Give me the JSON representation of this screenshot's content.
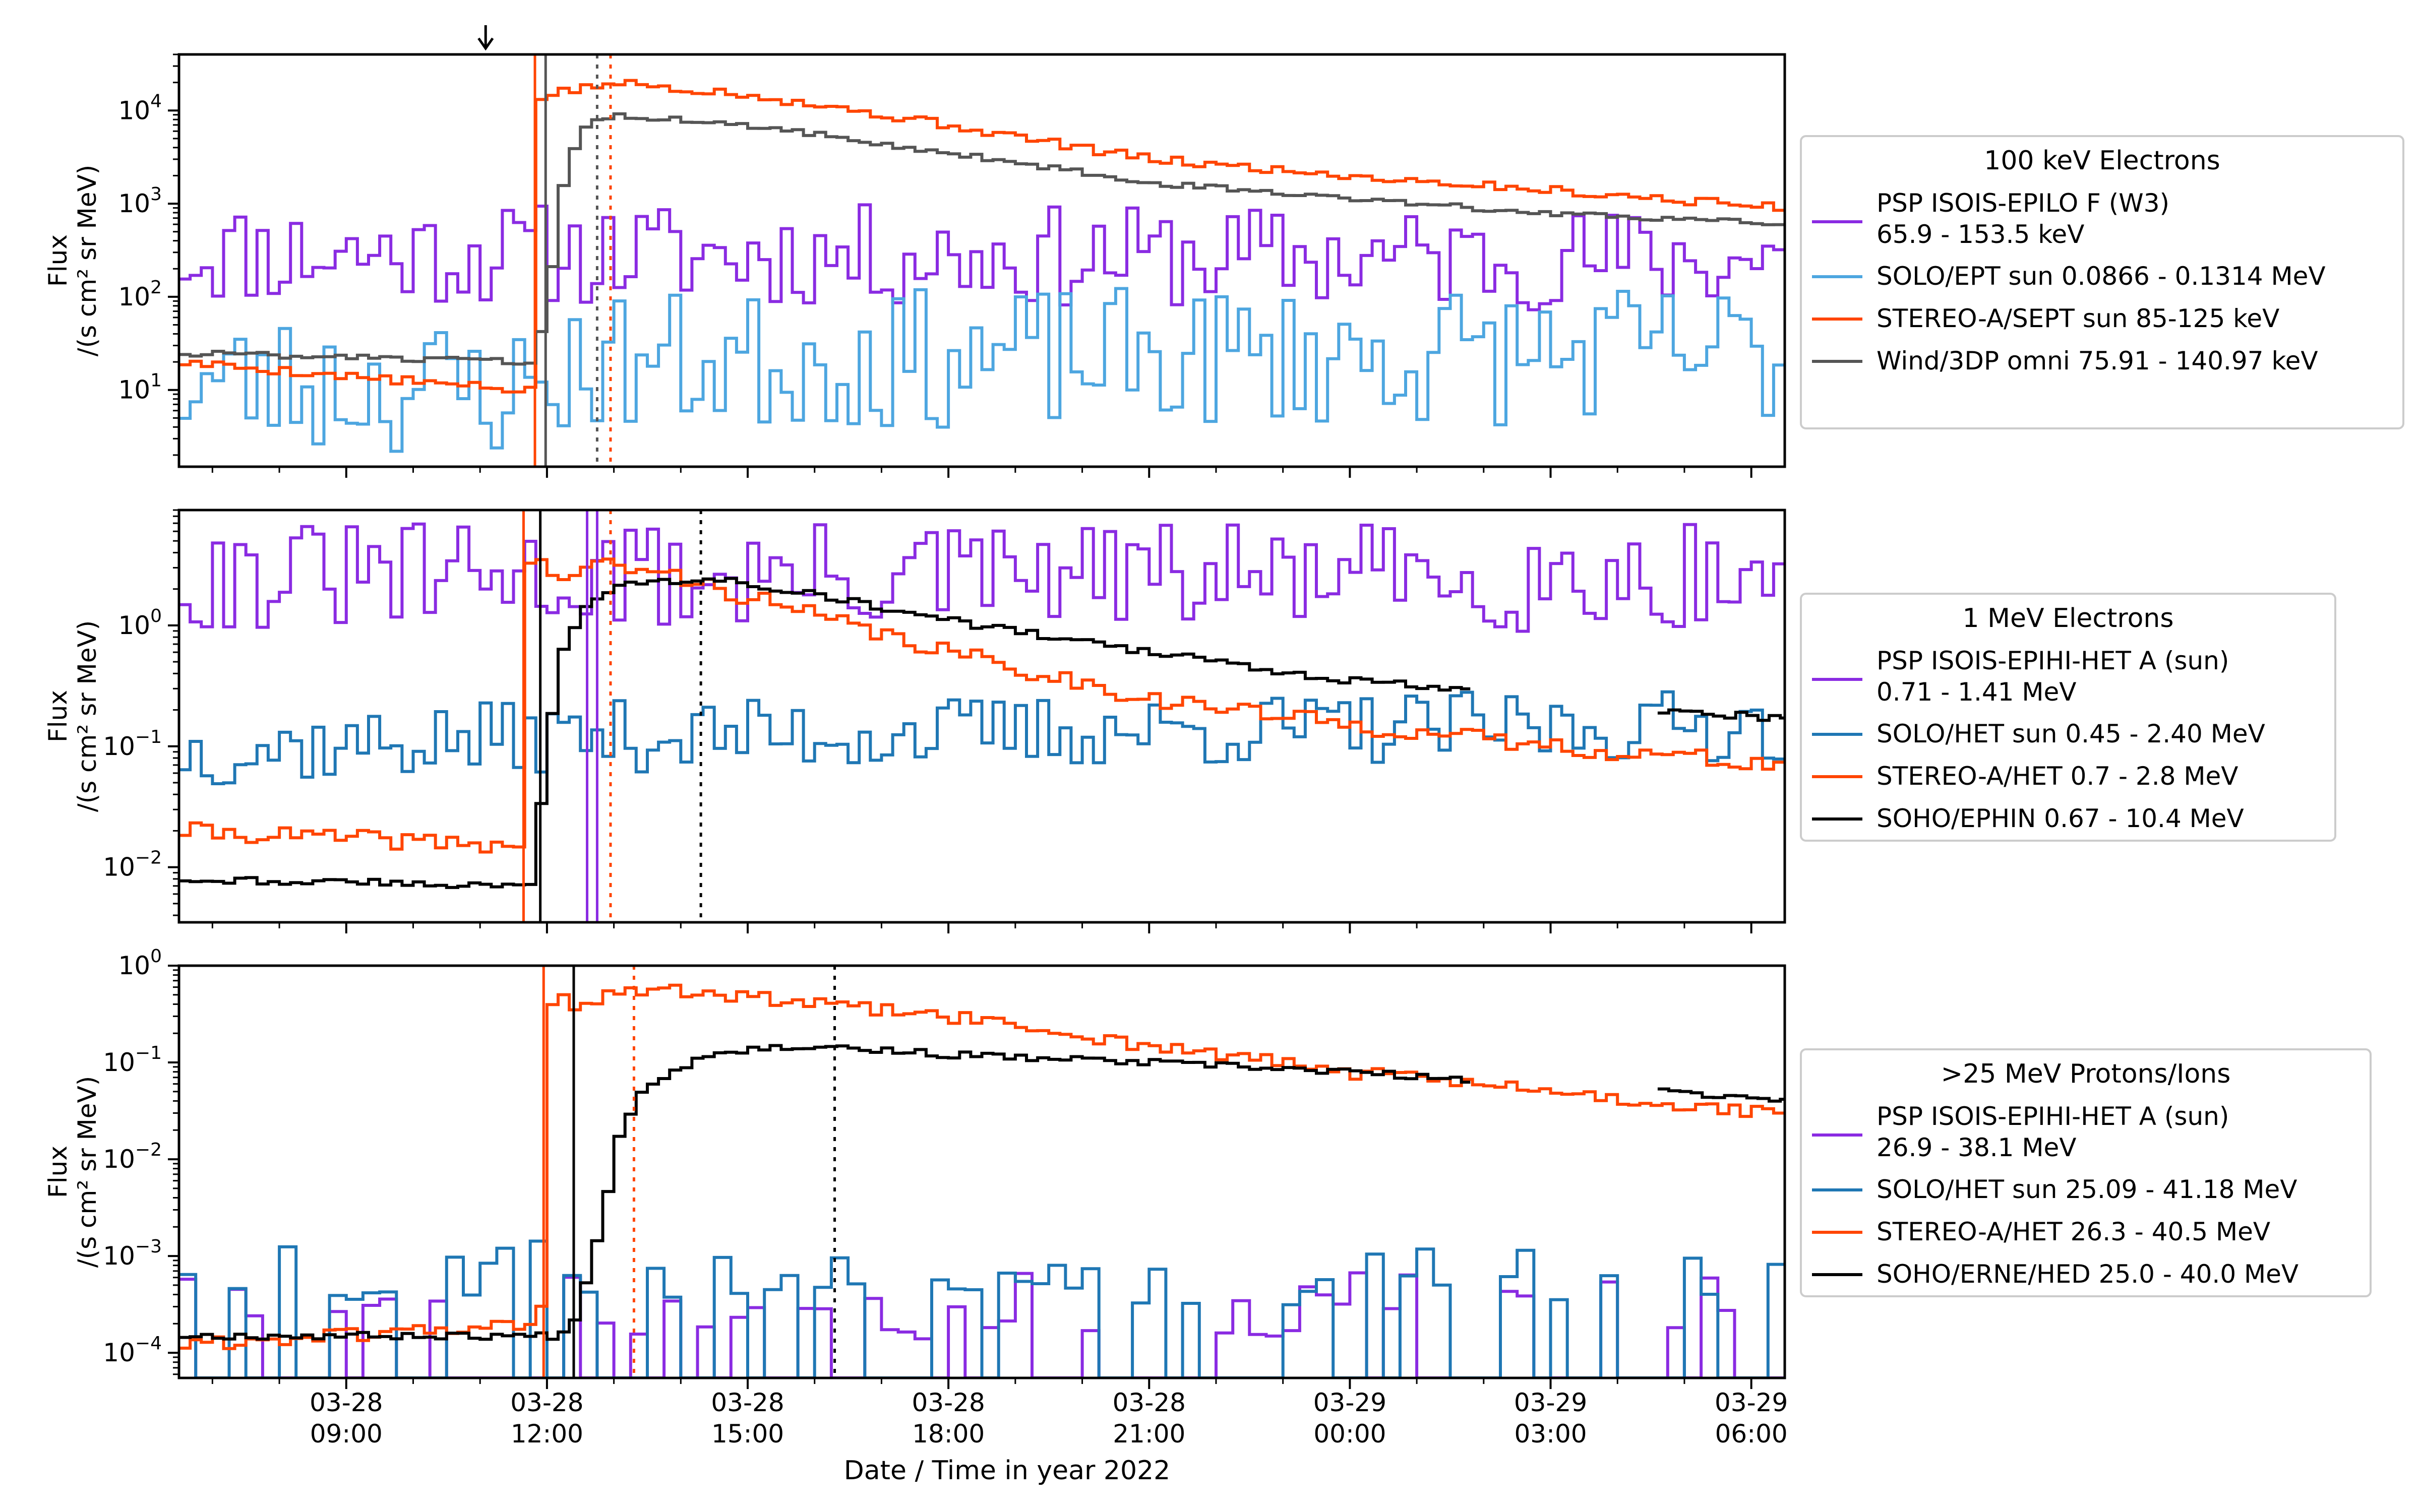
{
  "chart_data": {
    "type": "line",
    "xlabel": "Date / Time in year 2022",
    "x_range": [
      "2022-03-28 06:30",
      "2022-03-29 06:30"
    ],
    "x_ticks": [
      {
        "date": "03-28",
        "time": "09:00",
        "t": 9
      },
      {
        "date": "03-28",
        "time": "12:00",
        "t": 12
      },
      {
        "date": "03-28",
        "time": "15:00",
        "t": 15
      },
      {
        "date": "03-28",
        "time": "18:00",
        "t": 18
      },
      {
        "date": "03-28",
        "time": "21:00",
        "t": 21
      },
      {
        "date": "03-29",
        "time": "00:00",
        "t": 24
      },
      {
        "date": "03-29",
        "time": "03:00",
        "t": 27
      },
      {
        "date": "03-29",
        "time": "06:00",
        "t": 30
      }
    ],
    "arrow_marker_time": "2022-03-28 11:05",
    "colors": {
      "purple": "#8a2be2",
      "lightblue": "#4da6e0",
      "orange": "#ff4500",
      "gray": "#555555",
      "blue": "#1f77b4",
      "black": "#000000"
    },
    "panels": [
      {
        "legend_title": "100 keV Electrons",
        "ylabel": "Flux\n/(s cm² sr MeV)",
        "y_scale": "log",
        "ylim": [
          1.5,
          40000
        ],
        "y_ticks": [
          {
            "v": 10,
            "m": "10",
            "e": "1"
          },
          {
            "v": 100,
            "m": "10",
            "e": "2"
          },
          {
            "v": 1000,
            "m": "10",
            "e": "3"
          },
          {
            "v": 10000,
            "m": "10",
            "e": "4"
          }
        ],
        "series": [
          {
            "name": "PSP ISOIS-EPILO F (W3)",
            "name2": "65.9 - 153.5 keV",
            "color": "#8a2be2",
            "kind": "noise",
            "seed": 11,
            "knots": [
              [
                6.5,
                300
              ],
              [
                30.5,
                250
              ]
            ],
            "amp": 0.55
          },
          {
            "name": "SOLO/EPT sun 0.0866 - 0.1314 MeV",
            "color": "#4da6e0",
            "kind": "noise",
            "seed": 23,
            "knots": [
              [
                6.5,
                12
              ],
              [
                11.8,
                10
              ],
              [
                12.6,
                20
              ],
              [
                30.5,
                25
              ]
            ],
            "amp": 0.75
          },
          {
            "name": "STEREO-A/SEPT sun 85-125 keV",
            "color": "#ff4500",
            "kind": "smooth",
            "seed": 5,
            "knots": [
              [
                6.5,
                20
              ],
              [
                11.5,
                10
              ],
              [
                11.85,
                10
              ],
              [
                11.9,
                14000
              ],
              [
                12.7,
                18000
              ],
              [
                13.0,
                20000
              ],
              [
                15.0,
                15000
              ],
              [
                18.0,
                7000
              ],
              [
                21.0,
                3000
              ],
              [
                24.0,
                2000
              ],
              [
                27.0,
                1400
              ],
              [
                30.5,
                900
              ]
            ],
            "amp": 0.08
          },
          {
            "name": "Wind/3DP omni 75.91 - 140.97 keV",
            "color": "#555555",
            "kind": "smooth",
            "seed": 8,
            "knots": [
              [
                6.5,
                25
              ],
              [
                11.8,
                20
              ],
              [
                12.0,
                80
              ],
              [
                12.3,
                3000
              ],
              [
                12.6,
                7000
              ],
              [
                13.0,
                9000
              ],
              [
                15.0,
                7000
              ],
              [
                18.0,
                3500
              ],
              [
                21.0,
                1700
              ],
              [
                24.0,
                1100
              ],
              [
                27.0,
                800
              ],
              [
                30.5,
                600
              ]
            ],
            "amp": 0.05
          }
        ],
        "vlines": [
          {
            "t": 11.82,
            "color": "#ff4500",
            "style": "solid"
          },
          {
            "t": 11.98,
            "color": "#555555",
            "style": "solid"
          },
          {
            "t": 12.75,
            "color": "#555555",
            "style": "dotted"
          },
          {
            "t": 12.95,
            "color": "#ff4500",
            "style": "dotted"
          }
        ]
      },
      {
        "legend_title": "1 MeV Electrons",
        "ylabel": "Flux\n/(s cm² sr MeV)",
        "y_scale": "log",
        "ylim": [
          0.0035,
          9
        ],
        "y_ticks": [
          {
            "v": 0.01,
            "m": "10",
            "e": "−2"
          },
          {
            "v": 0.1,
            "m": "10",
            "e": "−1"
          },
          {
            "v": 1,
            "m": "10",
            "e": "0"
          }
        ],
        "series": [
          {
            "name": "PSP ISOIS-EPIHI-HET A (sun)",
            "name2": "0.71 - 1.41 MeV",
            "color": "#8a2be2",
            "kind": "noise",
            "seed": 31,
            "knots": [
              [
                6.5,
                2.5
              ],
              [
                30.5,
                2.5
              ]
            ],
            "amp": 0.45
          },
          {
            "name": "SOLO/HET sun 0.45 - 2.40 MeV",
            "color": "#1f77b4",
            "kind": "noise",
            "seed": 37,
            "knots": [
              [
                6.5,
                0.09
              ],
              [
                11.8,
                0.12
              ],
              [
                30.5,
                0.15
              ]
            ],
            "amp": 0.3
          },
          {
            "name": "STEREO-A/HET 0.7 - 2.8 MeV",
            "color": "#ff4500",
            "kind": "smooth",
            "seed": 41,
            "knots": [
              [
                6.5,
                0.02
              ],
              [
                11.6,
                0.015
              ],
              [
                11.7,
                3.5
              ],
              [
                12.3,
                2.5
              ],
              [
                12.9,
                3.2
              ],
              [
                14.0,
                2.5
              ],
              [
                16.0,
                1.2
              ],
              [
                18.0,
                0.6
              ],
              [
                21.0,
                0.25
              ],
              [
                24.0,
                0.15
              ],
              [
                27.0,
                0.1
              ],
              [
                30.5,
                0.07
              ]
            ],
            "amp": 0.12
          },
          {
            "name": "SOHO/EPHIN 0.67 - 10.4 MeV",
            "color": "#000000",
            "kind": "smooth",
            "seed": 43,
            "knots": [
              [
                6.5,
                0.008
              ],
              [
                11.8,
                0.007
              ],
              [
                11.95,
                0.05
              ],
              [
                12.2,
                0.6
              ],
              [
                12.6,
                1.5
              ],
              [
                13.2,
                2.2
              ],
              [
                14.5,
                2.5
              ],
              [
                16.0,
                1.8
              ],
              [
                18.0,
                1.1
              ],
              [
                21.0,
                0.6
              ],
              [
                24.0,
                0.35
              ],
              [
                25.8,
                0.3
              ]
            ],
            "gap": [
              25.8,
              28.6
            ],
            "tail": [
              [
                28.6,
                0.2
              ],
              [
                30.5,
                0.17
              ]
            ],
            "amp": 0.05
          }
        ],
        "vlines": [
          {
            "t": 11.65,
            "color": "#ff4500",
            "style": "solid"
          },
          {
            "t": 11.9,
            "color": "#000000",
            "style": "solid"
          },
          {
            "t": 12.6,
            "color": "#8a2be2",
            "style": "solid"
          },
          {
            "t": 12.75,
            "color": "#8a2be2",
            "style": "solid"
          },
          {
            "t": 12.95,
            "color": "#ff4500",
            "style": "dotted"
          },
          {
            "t": 14.3,
            "color": "#000000",
            "style": "dotted"
          }
        ]
      },
      {
        "legend_title": ">25 MeV Protons/Ions",
        "ylabel": "Flux\n/(s cm² sr MeV)",
        "y_scale": "log",
        "ylim": [
          5.5e-05,
          1
        ],
        "y_ticks": [
          {
            "v": 0.0001,
            "m": "10",
            "e": "−4"
          },
          {
            "v": 0.001,
            "m": "10",
            "e": "−3"
          },
          {
            "v": 0.01,
            "m": "10",
            "e": "−2"
          },
          {
            "v": 0.1,
            "m": "10",
            "e": "−1"
          },
          {
            "v": 1,
            "m": "10",
            "e": "0"
          }
        ],
        "series": [
          {
            "name": "PSP ISOIS-EPIHI-HET A (sun)",
            "name2": "26.9 - 38.1 MeV",
            "color": "#8a2be2",
            "kind": "spiky",
            "seed": 51,
            "base": 5.5e-05,
            "level": 0.0003,
            "prob": 0.45,
            "range": [
              6.5,
              30.5
            ]
          },
          {
            "name": "SOLO/HET sun 25.09 - 41.18 MeV",
            "color": "#1f77b4",
            "kind": "spiky",
            "seed": 57,
            "base": 5.5e-05,
            "level": 0.0007,
            "prob": 0.55,
            "range": [
              6.5,
              30.5
            ]
          },
          {
            "name": "STEREO-A/HET 26.3 - 40.5 MeV",
            "color": "#ff4500",
            "kind": "smooth",
            "seed": 61,
            "knots": [
              [
                6.5,
                0.00012
              ],
              [
                11.9,
                0.0002
              ],
              [
                12.0,
                0.005
              ],
              [
                12.1,
                1.0
              ],
              [
                12.4,
                0.3
              ],
              [
                12.9,
                0.5
              ],
              [
                14.0,
                0.55
              ],
              [
                16.0,
                0.4
              ],
              [
                18.0,
                0.3
              ],
              [
                21.0,
                0.15
              ],
              [
                24.0,
                0.08
              ],
              [
                27.0,
                0.05
              ],
              [
                30.5,
                0.028
              ]
            ],
            "amp": 0.12
          },
          {
            "name": "SOHO/ERNE/HED 25.0 - 40.0 MeV",
            "color": "#000000",
            "kind": "smooth",
            "seed": 67,
            "knots": [
              [
                6.5,
                0.00015
              ],
              [
                12.2,
                0.00015
              ],
              [
                12.4,
                0.0002
              ],
              [
                12.8,
                0.002
              ],
              [
                13.1,
                0.02
              ],
              [
                13.5,
                0.06
              ],
              [
                14.5,
                0.13
              ],
              [
                16.0,
                0.15
              ],
              [
                18.0,
                0.12
              ],
              [
                21.0,
                0.1
              ],
              [
                24.0,
                0.08
              ],
              [
                25.8,
                0.065
              ]
            ],
            "gap": [
              25.8,
              28.6
            ],
            "tail": [
              [
                28.6,
                0.05
              ],
              [
                30.5,
                0.042
              ]
            ],
            "amp": 0.06
          }
        ],
        "vlines": [
          {
            "t": 11.95,
            "color": "#ff4500",
            "style": "solid"
          },
          {
            "t": 12.4,
            "color": "#000000",
            "style": "solid"
          },
          {
            "t": 13.3,
            "color": "#ff4500",
            "style": "dotted"
          },
          {
            "t": 16.3,
            "color": "#000000",
            "style": "dotted"
          }
        ]
      }
    ]
  }
}
